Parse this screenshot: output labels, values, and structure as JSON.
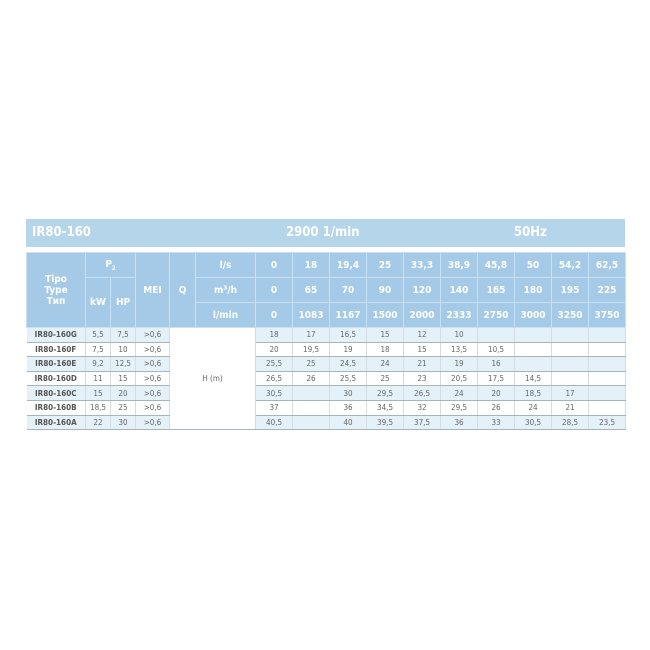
{
  "title": {
    "model": "IR80-160",
    "speed": "2900 1/min",
    "freq": "50Hz"
  },
  "header": {
    "type_label": [
      "Tipo",
      "Type",
      "Тип"
    ],
    "p2": "P",
    "p2_sub": "2",
    "kw": "kW",
    "hp": "HP",
    "mei": "MEI",
    "q": "Q",
    "units": [
      "l/s",
      "m³/h",
      "l/min"
    ],
    "ls": [
      "0",
      "18",
      "19,4",
      "25",
      "33,3",
      "38,9",
      "45,8",
      "50",
      "54,2",
      "62,5"
    ],
    "m3h": [
      "0",
      "65",
      "70",
      "90",
      "120",
      "140",
      "165",
      "180",
      "195",
      "225"
    ],
    "lmin": [
      "0",
      "1083",
      "1167",
      "1500",
      "2000",
      "2333",
      "2750",
      "3000",
      "3250",
      "3750"
    ]
  },
  "h_label": "H (m)",
  "rows": [
    {
      "name": "IR80-160G",
      "kw": "5,5",
      "hp": "7,5",
      "mei": ">0,6",
      "h": [
        "18",
        "17",
        "16,5",
        "15",
        "12",
        "10",
        "",
        "",
        "",
        ""
      ]
    },
    {
      "name": "IR80-160F",
      "kw": "7,5",
      "hp": "10",
      "mei": ">0,6",
      "h": [
        "20",
        "19,5",
        "19",
        "18",
        "15",
        "13,5",
        "10,5",
        "",
        "",
        ""
      ]
    },
    {
      "name": "IR80-160E",
      "kw": "9,2",
      "hp": "12,5",
      "mei": ">0,6",
      "h": [
        "25,5",
        "25",
        "24,5",
        "24",
        "21",
        "19",
        "16",
        "",
        "",
        ""
      ]
    },
    {
      "name": "IR80-160D",
      "kw": "11",
      "hp": "15",
      "mei": ">0,6",
      "h": [
        "26,5",
        "26",
        "25,5",
        "25",
        "23",
        "20,5",
        "17,5",
        "14,5",
        "",
        ""
      ]
    },
    {
      "name": "IR80-160C",
      "kw": "15",
      "hp": "20",
      "mei": ">0,6",
      "h": [
        "30,5",
        "",
        "30",
        "29,5",
        "26,5",
        "24",
        "20",
        "18,5",
        "17",
        ""
      ]
    },
    {
      "name": "IR80-160B",
      "kw": "18,5",
      "hp": "25",
      "mei": ">0,6",
      "h": [
        "37",
        "",
        "36",
        "34,5",
        "32",
        "29,5",
        "26",
        "24",
        "21",
        ""
      ]
    },
    {
      "name": "IR80-160A",
      "kw": "22",
      "hp": "30",
      "mei": ">0,6",
      "h": [
        "40,5",
        "",
        "40",
        "39,5",
        "37,5",
        "36",
        "33",
        "30,5",
        "28,5",
        "23,5"
      ]
    }
  ]
}
